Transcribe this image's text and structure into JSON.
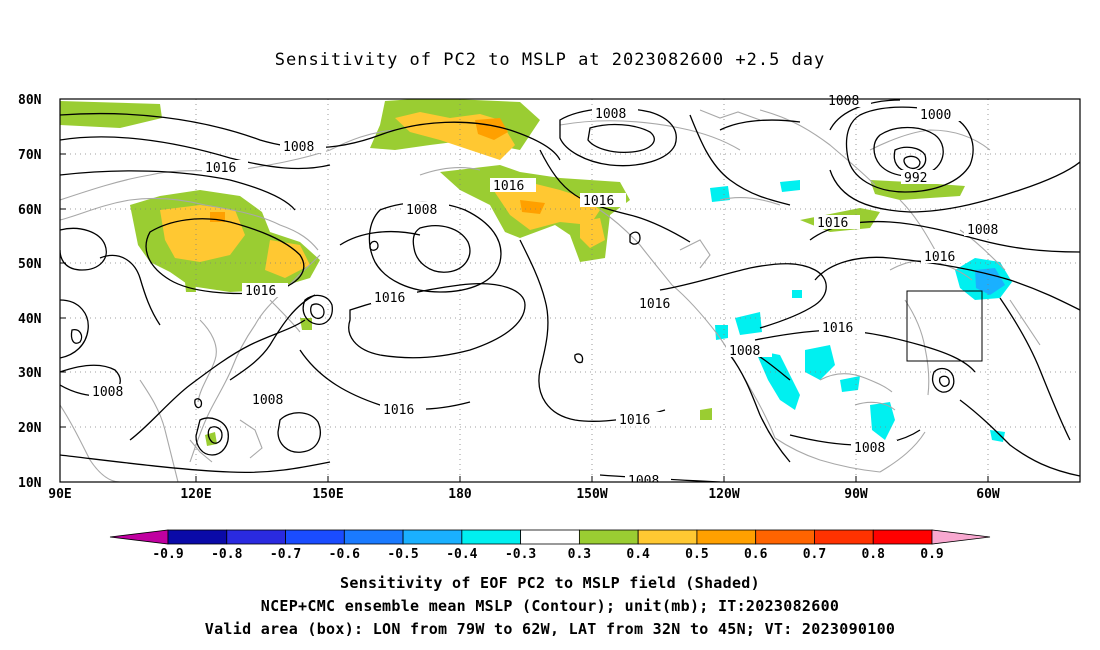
{
  "title": "Sensitivity of PC2 to MSLP at 2023082600 +2.5 day",
  "map": {
    "lat_labels": [
      "80N",
      "70N",
      "60N",
      "50N",
      "40N",
      "30N",
      "20N",
      "10N"
    ],
    "lon_labels": [
      "90E",
      "120E",
      "150E",
      "180",
      "150W",
      "120W",
      "90W",
      "60W"
    ],
    "contour_labels": {
      "c1": "1008",
      "c2": "1008",
      "c3": "1000",
      "c4": "1016",
      "c5": "1008",
      "c6": "1016",
      "c7": "1016",
      "c8": "992",
      "c9": "1008",
      "c10": "1016",
      "c11": "1016",
      "c12": "1016",
      "c13": "1016",
      "c14": "1016",
      "c15": "1016",
      "c16": "1008",
      "c17": "1008",
      "c18": "1016",
      "c19": "1008",
      "c20": "1008",
      "c21": "1016",
      "c22": "1008",
      "c23": "1008",
      "c24": "1008"
    },
    "valid_box": {
      "lon": [
        -79,
        -62
      ],
      "lat": [
        32,
        45
      ]
    },
    "colors": {
      "coast": "#a8a8a8",
      "contour": "#000000"
    }
  },
  "colorbar": {
    "labels": [
      "-0.9",
      "-0.8",
      "-0.7",
      "-0.6",
      "-0.5",
      "-0.4",
      "-0.3",
      "0.3",
      "0.4",
      "0.5",
      "0.6",
      "0.7",
      "0.8",
      "0.9"
    ],
    "colors": [
      "#c000a0",
      "#0a0aa8",
      "#2a2ae0",
      "#1a4cff",
      "#1a7aff",
      "#1ab0ff",
      "#00f0f0",
      "#ffffff",
      "#9acd32",
      "#ffc832",
      "#ffa000",
      "#ff6400",
      "#ff3200",
      "#ff0000",
      "#f8a8d0"
    ]
  },
  "caption": {
    "line1": "Sensitivity of EOF PC2 to MSLP field (Shaded)",
    "line2": "NCEP+CMC ensemble mean MSLP (Contour); unit(mb); IT:2023082600",
    "line3": "Valid area (box): LON from 79W to 62W, LAT from 32N to 45N; VT: 2023090100"
  }
}
